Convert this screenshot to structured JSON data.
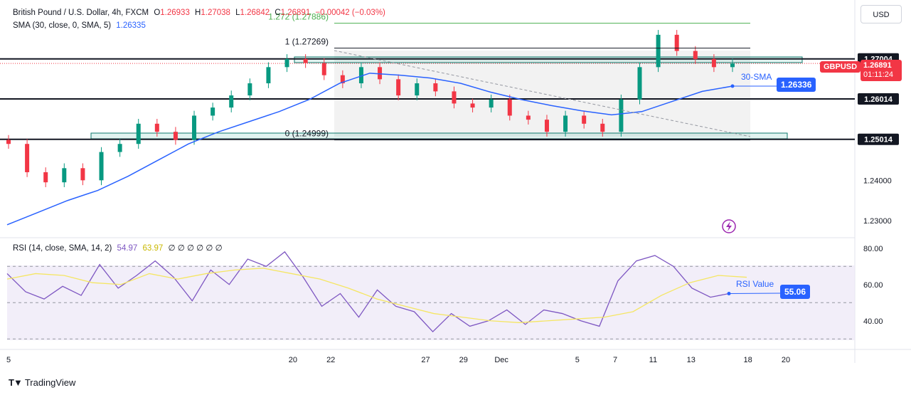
{
  "header": {
    "symbol": "British Pound / U.S. Dollar, 4h, FXCM",
    "open_label": "O",
    "open": "1.26933",
    "high_label": "H",
    "high": "1.27038",
    "low_label": "L",
    "low": "1.26842",
    "close_label": "C",
    "close": "1.26891",
    "change": "−0.00042 (−0.03%)",
    "sma_label": "SMA (30, close, 0, SMA, 5)",
    "sma_value": "1.26335",
    "rsi_label": "RSI (14, close, SMA, 14, 2)",
    "rsi_value": "54.97",
    "rsi_ma_value": "63.97",
    "rsi_extra": "∅ ∅ ∅ ∅ ∅ ∅"
  },
  "currency_button": "USD",
  "branding": "TradingView",
  "colors": {
    "up": "#089981",
    "down": "#f23645",
    "sma": "#2962ff",
    "rsi": "#7e57c2",
    "rsi_ma": "#f5e663",
    "fib_green": "#4caf50",
    "badge_blue": "#2962ff"
  },
  "annotations": {
    "sma_label": "30-SMA",
    "sma_badge": "1.26336",
    "rsi_label": "RSI Value",
    "rsi_badge": "55.06",
    "symbol_badge": "GBPUSD",
    "price_badge": "1.26891",
    "countdown": "01:11:24"
  },
  "chart_data": [
    {
      "type": "line",
      "title": "British Pound / U.S. Dollar, 4h, FXCM",
      "ylim": [
        1.2265,
        1.2832
      ],
      "y_ticks": [
        "1.23000",
        "1.24000"
      ],
      "x_ticks": [
        {
          "label": "5",
          "day": 5
        },
        {
          "label": "20",
          "day": 20
        },
        {
          "label": "22",
          "day": 22
        },
        {
          "label": "27",
          "day": 27
        },
        {
          "label": "29",
          "day": 29
        },
        {
          "label": "Dec",
          "day": 31
        },
        {
          "label": "5",
          "day": 35
        },
        {
          "label": "7",
          "day": 37
        },
        {
          "label": "11",
          "day": 39
        },
        {
          "label": "13",
          "day": 41
        },
        {
          "label": "18",
          "day": 44
        },
        {
          "label": "20",
          "day": 46
        }
      ],
      "levels": [
        {
          "label": "1.27004",
          "value": 1.27004
        },
        {
          "label": "1.26014",
          "value": 1.26014
        },
        {
          "label": "1.25014",
          "value": 1.25014
        }
      ],
      "fib_levels": [
        {
          "label": "1.272 (1.27886)",
          "value": 1.27886
        },
        {
          "label": "1 (1.27269)",
          "value": 1.27269
        },
        {
          "label": "0 (1.24999)",
          "value": 1.24999
        }
      ],
      "series": [
        {
          "name": "SMA (30, close, 0, SMA, 5)",
          "values": [
            1.229,
            1.232,
            1.235,
            1.2375,
            1.241,
            1.245,
            1.249,
            1.252,
            1.2545,
            1.257,
            1.26,
            1.264,
            1.2665,
            1.266,
            1.2653,
            1.264,
            1.2618,
            1.26,
            1.2585,
            1.2572,
            1.2562,
            1.257,
            1.2595,
            1.262,
            1.2633
          ]
        },
        {
          "name": "GBPUSD close",
          "values": [
            1.249,
            1.242,
            1.2395,
            1.243,
            1.24,
            1.247,
            1.249,
            1.254,
            1.252,
            1.25,
            1.256,
            1.258,
            1.261,
            1.264,
            1.268,
            1.27,
            1.269,
            1.266,
            1.264,
            1.268,
            1.265,
            1.261,
            1.264,
            1.262,
            1.259,
            1.258,
            1.26,
            1.256,
            1.255,
            1.252,
            1.256,
            1.254,
            1.252,
            1.26,
            1.268,
            1.276,
            1.272,
            1.27,
            1.268,
            1.2689
          ]
        }
      ]
    },
    {
      "type": "line",
      "title": "RSI (14, close, SMA, 14, 2)",
      "ylim": [
        25,
        85
      ],
      "y_ticks": [
        "80.00",
        "60.00",
        "40.00"
      ],
      "bands": [
        70,
        50,
        30
      ],
      "series": [
        {
          "name": "RSI",
          "values": [
            66,
            56,
            52,
            59,
            54,
            71,
            58,
            65,
            73,
            64,
            51,
            68,
            60,
            74,
            70,
            78,
            64,
            48,
            55,
            42,
            57,
            48,
            45,
            34,
            44,
            37,
            40,
            46,
            38,
            46,
            44,
            40,
            37,
            62,
            73,
            76,
            70,
            58,
            53,
            55
          ]
        },
        {
          "name": "RSI-based MA",
          "values": [
            63,
            66,
            65,
            61,
            60,
            66,
            63,
            66,
            68,
            69,
            66,
            63,
            58,
            52,
            48,
            44,
            42,
            40,
            39,
            40,
            41,
            42,
            45,
            54,
            61,
            65,
            64
          ]
        }
      ]
    }
  ]
}
